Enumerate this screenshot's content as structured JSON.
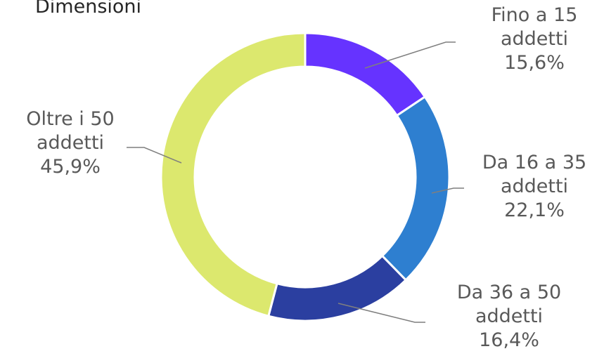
{
  "title": "Dimensioni",
  "chart_data": {
    "type": "pie",
    "variant": "doughnut",
    "title": "Dimensioni",
    "categories": [
      "Fino a 15 addetti",
      "Da 16 a 35 addetti",
      "Da 36 a 50 addetti",
      "Oltre i 50 addetti"
    ],
    "values": [
      15.6,
      22.1,
      16.4,
      45.9
    ],
    "data_labels": [
      [
        "Fino a 15",
        "addetti",
        "15,6%"
      ],
      [
        "Da 16 a 35",
        "addetti",
        "22,1%"
      ],
      [
        "Da 36 a 50",
        "addetti",
        "16,4%"
      ],
      [
        "Oltre i 50",
        "addetti",
        "45,9%"
      ]
    ],
    "colors": [
      "#6633FF",
      "#2E7FD0",
      "#2B3FA0",
      "#DCE86E"
    ],
    "legend": "none"
  }
}
